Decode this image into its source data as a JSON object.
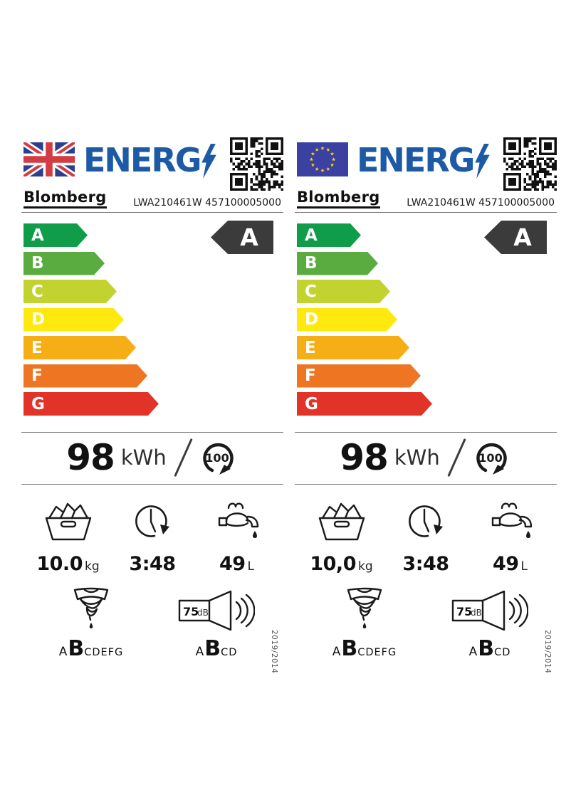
{
  "shared": {
    "logo_text": "ENERG",
    "logo_color": "#1d5aa6",
    "brand": "Blomberg",
    "model": "LWA210461W 457100005000",
    "rating": "A",
    "badge_color": "#3b3b3b",
    "scale": [
      {
        "grade": "A",
        "color": "#0f9d49"
      },
      {
        "grade": "B",
        "color": "#5aac41"
      },
      {
        "grade": "C",
        "color": "#c2d22e"
      },
      {
        "grade": "D",
        "color": "#fde90e"
      },
      {
        "grade": "E",
        "color": "#f6ae16"
      },
      {
        "grade": "F",
        "color": "#ee7622"
      },
      {
        "grade": "G",
        "color": "#e23329"
      }
    ],
    "energy_value": "98",
    "energy_unit": "kWh",
    "cycles": "100",
    "duration": "3:48",
    "water_value": "49",
    "water_unit": "L",
    "capacity_unit": "kg",
    "spin_before": "A",
    "spin_current": "B",
    "spin_after": "CDEFG",
    "noise_value": "75",
    "noise_unit": "dB",
    "noise_before": "A",
    "noise_current": "B",
    "noise_after": "CD",
    "regulation": "2019/2014",
    "flag_colors": {
      "uk_blue": "#2b3f8e",
      "uk_red": "#d23c42",
      "eu_blue": "#3a41a0",
      "eu_star": "#fcd116"
    },
    "icons": [
      "uk-flag",
      "eu-flag",
      "qr-code",
      "lightning-bolt",
      "laundry-basket",
      "clock-cycle",
      "water-tap",
      "water-drop",
      "spin-dry-shirt",
      "speaker-noise",
      "per-100-cycles"
    ]
  },
  "labels": [
    {
      "region": "uk",
      "flag": "uk-flag",
      "capacity_value": "10.0"
    },
    {
      "region": "eu",
      "flag": "eu-flag",
      "capacity_value": "10,0"
    }
  ]
}
